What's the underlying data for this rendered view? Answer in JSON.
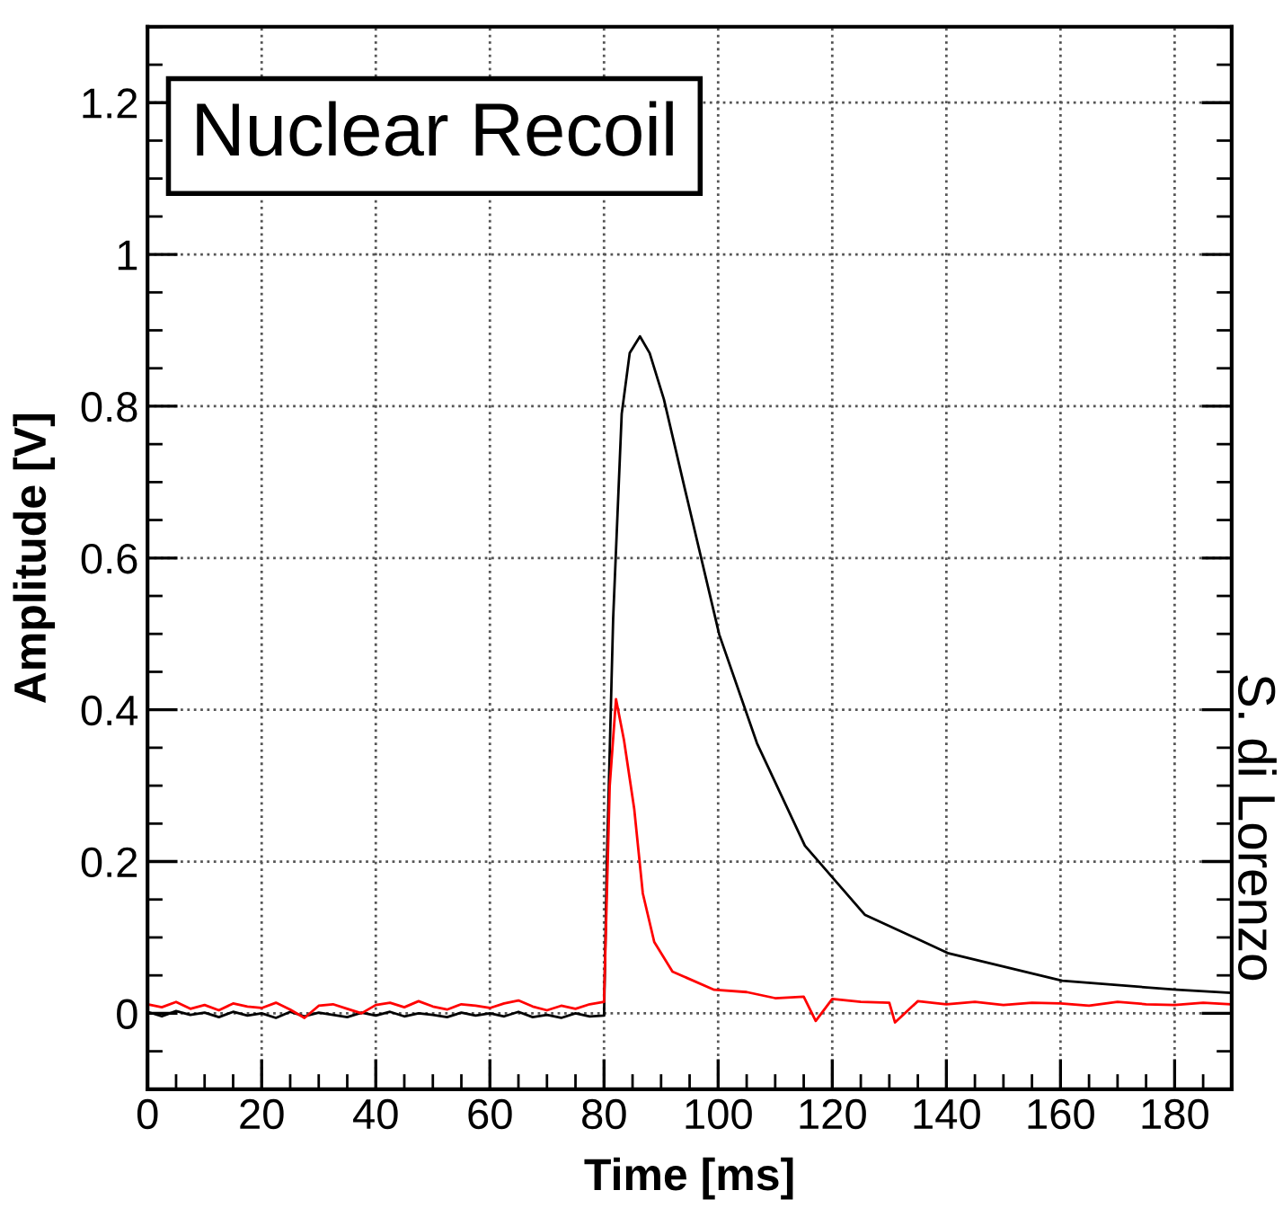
{
  "chart_data": {
    "type": "line",
    "xlabel": "Time [ms]",
    "ylabel": "Amplitude [V]",
    "annotations": [
      "Nuclear Recoil",
      "S. di Lorenzo"
    ],
    "xlim": [
      0,
      190
    ],
    "ylim": [
      -0.1,
      1.3
    ],
    "xticks": [
      0,
      20,
      40,
      60,
      80,
      100,
      120,
      140,
      160,
      180
    ],
    "yticks": [
      0,
      0.2,
      0.4,
      0.6,
      0.8,
      1,
      1.2
    ],
    "grid": true,
    "legend": false,
    "marker": "none",
    "line_style": "solid",
    "series": [
      {
        "color": "#000000",
        "x": [
          0,
          2.5,
          5,
          7.5,
          10,
          12.5,
          15,
          17.5,
          20,
          22.5,
          25,
          27.5,
          30,
          32.5,
          35,
          37.5,
          40,
          42.5,
          45,
          47.5,
          50,
          52.5,
          55,
          57.5,
          60,
          62.5,
          65,
          67.5,
          70,
          72.5,
          75,
          77.5,
          80,
          80.5,
          81.6,
          83.1,
          84.5,
          86.3,
          88,
          90.5,
          94.2,
          100.2,
          106.8,
          115.2,
          125.7,
          140.4,
          160.3,
          180.4,
          189.7
        ],
        "values": [
          0.002,
          -0.004,
          0.003,
          -0.002,
          0.001,
          -0.005,
          0.002,
          -0.003,
          0.0,
          -0.006,
          0.002,
          -0.004,
          0.001,
          -0.002,
          -0.005,
          0.001,
          -0.003,
          0.002,
          -0.004,
          0.0,
          -0.002,
          -0.005,
          0.001,
          -0.003,
          0.0,
          -0.004,
          0.002,
          -0.005,
          -0.002,
          -0.006,
          0.0,
          -0.004,
          -0.003,
          0.2,
          0.52,
          0.79,
          0.87,
          0.892,
          0.87,
          0.809,
          0.69,
          0.499,
          0.356,
          0.221,
          0.13,
          0.079,
          0.043,
          0.031,
          0.027
        ]
      },
      {
        "color": "#ff0000",
        "x": [
          0,
          2.5,
          5,
          7.5,
          10,
          12.5,
          15,
          17.5,
          20,
          22.5,
          25,
          27.5,
          30,
          32.5,
          35,
          37.5,
          40,
          42.5,
          45,
          47.5,
          50,
          52.5,
          55,
          57.5,
          60,
          62.5,
          65,
          67.5,
          70,
          72.5,
          75,
          77.5,
          80,
          81,
          82.1,
          83.5,
          85.3,
          86.8,
          88.8,
          92,
          99.3,
          105,
          110,
          115,
          117.1,
          120,
          125,
          130,
          131,
          135,
          140,
          145,
          150,
          155,
          160,
          165,
          170,
          175,
          180,
          185,
          189.7
        ],
        "values": [
          0.012,
          0.008,
          0.015,
          0.006,
          0.011,
          0.004,
          0.013,
          0.009,
          0.007,
          0.014,
          0.005,
          -0.006,
          0.01,
          0.012,
          0.006,
          0.0,
          0.011,
          0.014,
          0.008,
          0.016,
          0.009,
          0.005,
          0.012,
          0.01,
          0.007,
          0.013,
          0.017,
          0.009,
          0.004,
          0.01,
          0.006,
          0.012,
          0.015,
          0.3,
          0.414,
          0.36,
          0.269,
          0.158,
          0.094,
          0.055,
          0.031,
          0.028,
          0.02,
          0.022,
          -0.01,
          0.019,
          0.015,
          0.014,
          -0.012,
          0.016,
          0.012,
          0.015,
          0.011,
          0.014,
          0.013,
          0.01,
          0.015,
          0.012,
          0.011,
          0.014,
          0.012
        ]
      }
    ]
  }
}
